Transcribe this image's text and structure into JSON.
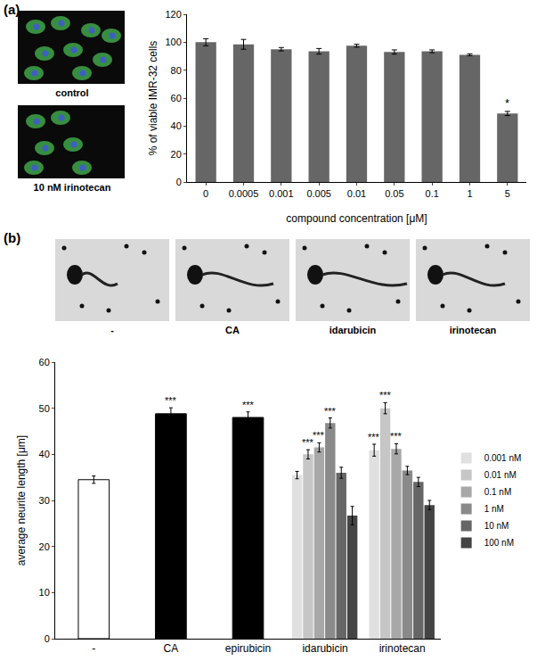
{
  "chart_data": [
    {
      "type": "bar",
      "title": "(a)",
      "images": [
        "control",
        "10 nM irinotecan"
      ],
      "categories": [
        "0",
        "0.0005",
        "0.001",
        "0.005",
        "0.01",
        "0.05",
        "0.1",
        "1",
        "5"
      ],
      "values": [
        100,
        98.5,
        95,
        93.5,
        97.5,
        93,
        93.5,
        91,
        49
      ],
      "errors": [
        2.5,
        3.5,
        1.2,
        2,
        1,
        1.5,
        1,
        0.7,
        1.5
      ],
      "significance": [
        null,
        null,
        null,
        null,
        null,
        null,
        null,
        null,
        "*"
      ],
      "color": "#666666",
      "x_label": "compound concentration [μM]",
      "y_label": "% of viable IMR-32 cells",
      "ylim": [
        0,
        120
      ],
      "yticks": [
        0,
        20,
        40,
        60,
        80,
        100,
        120
      ],
      "grid": false
    },
    {
      "type": "bar",
      "title": "(b)",
      "images": [
        "-",
        "CA",
        "idarubicin",
        "irinotecan"
      ],
      "categories": [
        "-",
        "CA",
        "epirubicin",
        "idarubicin",
        "irinotecan"
      ],
      "series": [
        {
          "colors": [
            "#ffffff",
            "#000000",
            "#000000",
            null,
            null
          ],
          "values": [
            34.5,
            48.8,
            48,
            null,
            null
          ],
          "errors": [
            0.8,
            1.3,
            1.2,
            null,
            null
          ],
          "significance": [
            null,
            "***",
            "***",
            null,
            null
          ]
        },
        {
          "name": "0.001 nM",
          "color": "#e0e0e0",
          "values": [
            null,
            null,
            null,
            35.5,
            40.9
          ],
          "errors": [
            null,
            null,
            null,
            0.8,
            1.3
          ],
          "significance": [
            null,
            null,
            null,
            null,
            "***"
          ]
        },
        {
          "name": "0.01 nM",
          "color": "#c6c6c6",
          "values": [
            null,
            null,
            null,
            40,
            50
          ],
          "errors": [
            null,
            null,
            null,
            1,
            1.2
          ],
          "significance": [
            null,
            null,
            null,
            "***",
            "***"
          ]
        },
        {
          "name": "0.1 nM",
          "color": "#a8a8a8",
          "values": [
            null,
            null,
            null,
            41.5,
            41.2
          ],
          "errors": [
            null,
            null,
            null,
            1,
            1.1
          ],
          "significance": [
            null,
            null,
            null,
            "***",
            "***"
          ]
        },
        {
          "name": "1 nM",
          "color": "#8a8a8a",
          "values": [
            null,
            null,
            null,
            46.8,
            36.5
          ],
          "errors": [
            null,
            null,
            null,
            1.1,
            0.9
          ],
          "significance": [
            null,
            null,
            null,
            "***",
            null
          ]
        },
        {
          "name": "10 nM",
          "color": "#666666",
          "values": [
            null,
            null,
            null,
            36,
            34
          ],
          "errors": [
            null,
            null,
            null,
            1.2,
            1
          ],
          "significance": [
            null,
            null,
            null,
            null,
            null
          ]
        },
        {
          "name": "100 nM",
          "color": "#444444",
          "values": [
            null,
            null,
            null,
            26.7,
            29
          ],
          "errors": [
            null,
            null,
            null,
            2,
            1
          ],
          "significance": [
            null,
            null,
            null,
            null,
            null
          ]
        }
      ],
      "y_label": "average neurite length [μm]",
      "ylim": [
        0,
        60
      ],
      "yticks": [
        0,
        10,
        20,
        30,
        40,
        50,
        60
      ],
      "grid": false,
      "legend": "right"
    }
  ]
}
